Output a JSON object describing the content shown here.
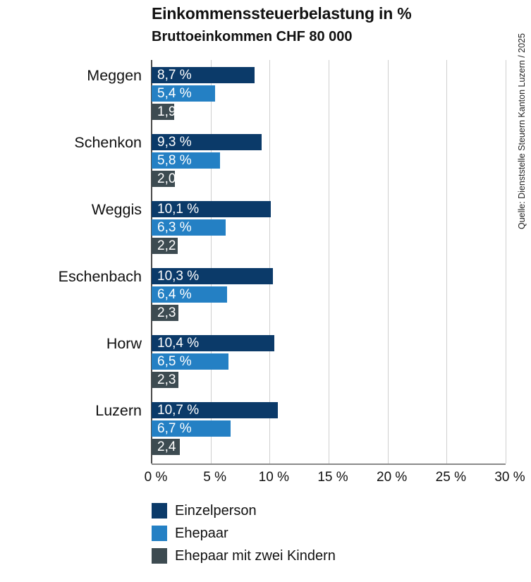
{
  "header": {
    "title": "Einkommenssteuerbelastung in %",
    "subtitle": "Bruttoeinkommen CHF 80 000"
  },
  "source_note": "Quelle: Dienststelle Steuern Kanton Luzern / 2025",
  "colors": {
    "series_dark_blue": "#0b3a69",
    "series_light_blue": "#2480c4",
    "series_slate_gray": "#3d4b51",
    "gridline": "#cfcfcf",
    "zero_line": "#4a4a4a",
    "axis_line": "#8a8a8a",
    "text": "#111111",
    "bar_label_text": "#ffffff",
    "background": "#ffffff"
  },
  "chart_data": {
    "type": "bar",
    "orientation": "horizontal",
    "title": "Einkommenssteuerbelastung in %",
    "subtitle": "Bruttoeinkommen CHF 80 000",
    "categories": [
      "Meggen",
      "Schenkon",
      "Weggis",
      "Eschenbach",
      "Horw",
      "Luzern"
    ],
    "series": [
      {
        "name": "Einzelperson",
        "color": "#0b3a69",
        "values": [
          8.7,
          9.3,
          10.1,
          10.3,
          10.4,
          10.7
        ],
        "labels": [
          "8,7 %",
          "9,3 %",
          "10,1 %",
          "10,3 %",
          "10,4 %",
          "10,7 %"
        ]
      },
      {
        "name": "Ehepaar",
        "color": "#2480c4",
        "values": [
          5.4,
          5.8,
          6.3,
          6.4,
          6.5,
          6.7
        ],
        "labels": [
          "5,4 %",
          "5,8 %",
          "6,3 %",
          "6,4 %",
          "6,5 %",
          "6,7 %"
        ]
      },
      {
        "name": "Ehepaar mit zwei Kindern",
        "color": "#3d4b51",
        "values": [
          1.9,
          2.0,
          2.2,
          2.3,
          2.3,
          2.4
        ],
        "labels": [
          "1,9",
          "2,0",
          "2,2",
          "2,3",
          "2,3",
          "2,4"
        ]
      }
    ],
    "x_axis": {
      "min": 0,
      "max": 30,
      "tick_step": 5,
      "tick_labels": [
        "0 %",
        "5 %",
        "10 %",
        "15 %",
        "20 %",
        "25 %",
        "30 %"
      ]
    },
    "grid": "vertical",
    "legend_position": "bottom-left",
    "legend": [
      "Einzelperson",
      "Ehepaar",
      "Ehepaar mit zwei Kindern"
    ]
  },
  "layout": {
    "group_start_y": 10,
    "group_pitch_y": 95
  }
}
